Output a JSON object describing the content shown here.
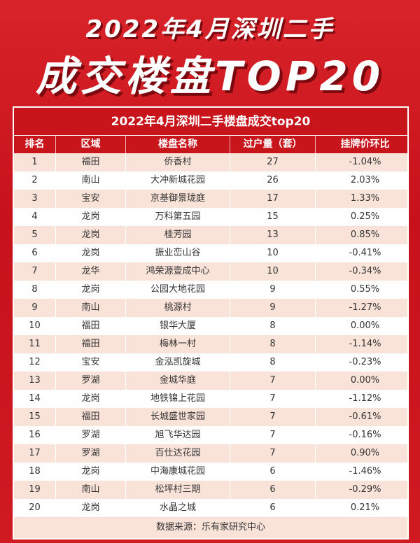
{
  "title_line1": "2022年4月深圳二手",
  "title_line2": "成交楼盘TOP20",
  "table": {
    "caption": "2022年4月深圳二手楼盘成交top20",
    "headers": [
      "排名",
      "区域",
      "楼盘名称",
      "过户量（套）",
      "挂牌价环比"
    ],
    "rows": [
      [
        "1",
        "福田",
        "侨香村",
        "27",
        "-1.04%"
      ],
      [
        "2",
        "南山",
        "大冲新城花园",
        "26",
        "2.03%"
      ],
      [
        "3",
        "宝安",
        "京基御景珑庭",
        "17",
        "1.33%"
      ],
      [
        "4",
        "龙岗",
        "万科第五园",
        "15",
        "0.25%"
      ],
      [
        "5",
        "龙岗",
        "桂芳园",
        "13",
        "0.85%"
      ],
      [
        "6",
        "龙岗",
        "振业峦山谷",
        "10",
        "-0.41%"
      ],
      [
        "7",
        "龙华",
        "鸿荣源壹成中心",
        "10",
        "-0.34%"
      ],
      [
        "8",
        "龙岗",
        "公园大地花园",
        "9",
        "0.55%"
      ],
      [
        "9",
        "南山",
        "桃源村",
        "9",
        "-1.27%"
      ],
      [
        "10",
        "福田",
        "银华大厦",
        "8",
        "0.00%"
      ],
      [
        "11",
        "福田",
        "梅林一村",
        "8",
        "-1.14%"
      ],
      [
        "12",
        "宝安",
        "金泓凯旋城",
        "8",
        "-0.23%"
      ],
      [
        "13",
        "罗湖",
        "金城华庭",
        "7",
        "0.00%"
      ],
      [
        "14",
        "龙岗",
        "地铁锦上花园",
        "7",
        "-1.12%"
      ],
      [
        "15",
        "福田",
        "长城盛世家园",
        "7",
        "-0.61%"
      ],
      [
        "16",
        "罗湖",
        "旭飞华达园",
        "7",
        "-0.16%"
      ],
      [
        "17",
        "罗湖",
        "百仕达花园",
        "7",
        "0.90%"
      ],
      [
        "18",
        "龙岗",
        "中海康城花园",
        "6",
        "-1.46%"
      ],
      [
        "19",
        "南山",
        "松坪村三期",
        "6",
        "-0.29%"
      ],
      [
        "20",
        "龙岗",
        "水晶之城",
        "6",
        "0.21%"
      ]
    ],
    "footer": "数据来源：乐有家研究中心"
  },
  "watermark": "乐有家"
}
